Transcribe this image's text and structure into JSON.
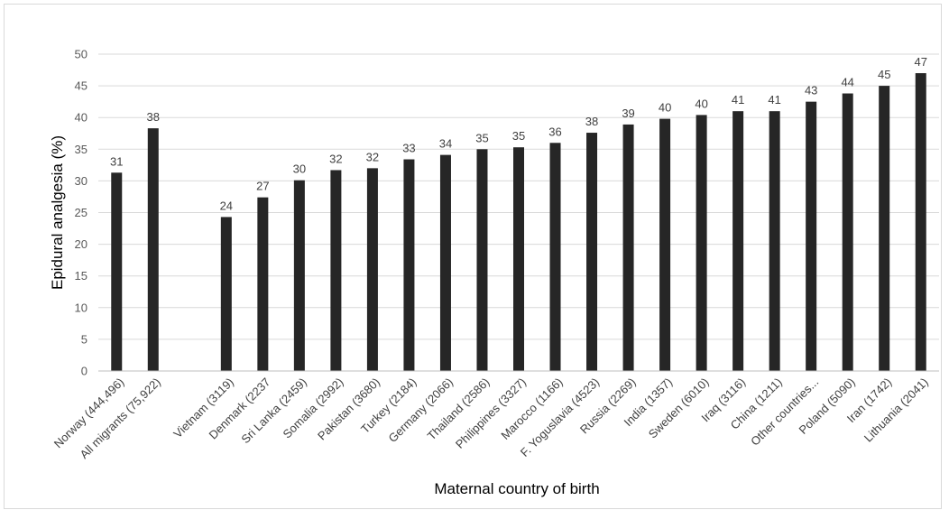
{
  "chart_data": {
    "type": "bar",
    "title": "",
    "xlabel": "Maternal country of birth",
    "ylabel": "Epidural analgesia (%)",
    "ylim": [
      0,
      50
    ],
    "yticks": [
      "0",
      "5",
      "10",
      "15",
      "20",
      "25",
      "30",
      "35",
      "40",
      "45",
      "50"
    ],
    "grid": true,
    "legend": "none",
    "colors": {
      "bar": "#262626",
      "grid": "#d9d9d9",
      "axis": "#bfbfbf"
    },
    "categories": [
      "Norway (444,496)",
      "All migrants (75,922)",
      "",
      "Vietnam (3119)",
      "Denmark (2237",
      "Sri Lanka (2459)",
      "Somalia (2992)",
      "Pakistan (3680)",
      "Turkey (2184)",
      "Germany (2066)",
      "Thailand (2586)",
      "Philippines (3327)",
      "Marocco (1166)",
      "F. Yoguslavia (4523)",
      "Russia (2269)",
      "India (1357)",
      "Sweden (6010)",
      "Iraq (3116)",
      "China (1211)",
      "Other countries...",
      "Poland (5090)",
      "Iran (1742)",
      "Lithuania (2041)"
    ],
    "values": [
      31.3,
      38.3,
      null,
      24.3,
      27.4,
      30.1,
      31.7,
      32.0,
      33.4,
      34.1,
      35.0,
      35.3,
      36.0,
      37.6,
      38.9,
      39.8,
      40.4,
      41.0,
      41.0,
      42.5,
      43.8,
      45.0,
      47.0
    ],
    "data_labels": [
      "31",
      "38",
      "",
      "24",
      "27",
      "30",
      "32",
      "32",
      "33",
      "34",
      "35",
      "35",
      "36",
      "38",
      "39",
      "40",
      "40",
      "41",
      "41",
      "43",
      "44",
      "45",
      "47"
    ]
  }
}
